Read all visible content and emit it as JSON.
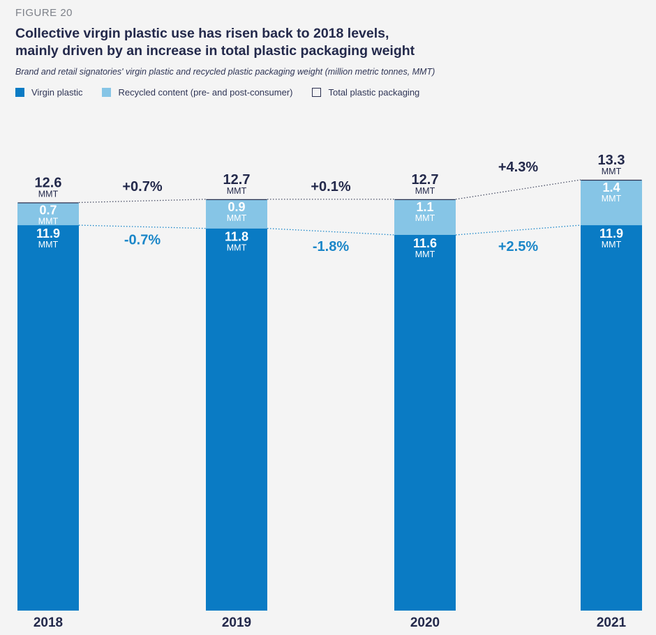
{
  "figure_label": "FIGURE 20",
  "colors": {
    "virgin": "#0a7bc4",
    "recycled": "#86c5e6",
    "total_outline": "#2a2f4e",
    "dark_text": "#23294b",
    "change_virgin": "#1a86c8",
    "background": "#f4f4f4"
  },
  "chart_data": {
    "type": "bar",
    "stacked": true,
    "title": "Collective virgin plastic use has risen back to 2018 levels, mainly driven by an increase in total plastic packaging weight",
    "title_lines": [
      "Collective virgin plastic use has risen back to 2018 levels,",
      "mainly driven by an increase in total plastic packaging weight"
    ],
    "subtitle": "Brand and retail signatories' virgin plastic and recycled plastic packaging weight (million metric tonnes, MMT)",
    "unit": "MMT",
    "categories": [
      "2018",
      "2019",
      "2020",
      "2021"
    ],
    "series": [
      {
        "name": "Virgin plastic",
        "values": [
          11.9,
          11.8,
          11.6,
          11.9
        ]
      },
      {
        "name": "Recycled content (pre- and post-consumer)",
        "values": [
          0.7,
          0.9,
          1.1,
          1.4
        ]
      }
    ],
    "totals": {
      "name": "Total plastic packaging",
      "values": [
        12.6,
        12.7,
        12.7,
        13.3
      ]
    },
    "total_labels": [
      "12.6",
      "12.7",
      "12.7",
      "13.3"
    ],
    "virgin_labels": [
      "11.9",
      "11.8",
      "11.6",
      "11.9"
    ],
    "recycled_labels": [
      "0.7",
      "0.9",
      "1.1",
      "1.4"
    ],
    "total_changes": [
      "+0.7%",
      "+0.1%",
      "+4.3%"
    ],
    "virgin_changes": [
      "-0.7%",
      "-1.8%",
      "+2.5%"
    ],
    "ylim": [
      0,
      13.3
    ],
    "grid": false,
    "legend_position": "top-left"
  }
}
